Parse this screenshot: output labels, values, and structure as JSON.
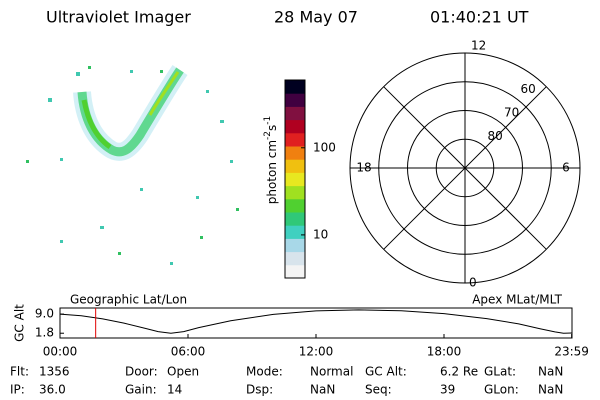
{
  "header": {
    "title": "Ultraviolet Imager",
    "date": "28 May 07",
    "time": "01:40:21 UT"
  },
  "colorbar": {
    "label_parts": [
      "photon cm",
      "-2",
      "s",
      "-1"
    ],
    "scale": "log",
    "lim": [
      3.2,
      600
    ],
    "ticks": [
      10,
      100
    ],
    "colors": [
      "#f4f4f4",
      "#d8e4ec",
      "#a8d8e8",
      "#40d0c0",
      "#30c878",
      "#50d030",
      "#a0e020",
      "#e8e820",
      "#f0c010",
      "#f08010",
      "#e02020",
      "#b00020",
      "#801040",
      "#400040",
      "#000020"
    ]
  },
  "polar": {
    "mlt_labels": [
      "12",
      "18",
      "6",
      "0"
    ],
    "lat_rings": [
      80,
      70,
      60
    ],
    "rlim": [
      90,
      50
    ]
  },
  "alt_plot": {
    "ylabel": "GC Alt",
    "left_title": "Geographic Lat/Lon",
    "right_title": "Apex MLat/MLT",
    "xlim": [
      0,
      24
    ],
    "ylim": [
      0,
      11.3
    ],
    "yticks": [
      {
        "value": 9.0,
        "label": "9.0"
      },
      1.8
    ],
    "xticks": [
      {
        "value": 0,
        "label": "00:00"
      },
      {
        "value": 6,
        "label": "06:00"
      },
      {
        "value": 12,
        "label": "12:00"
      },
      {
        "value": 18,
        "label": "18:00"
      },
      {
        "value": 23.983,
        "label": "23:59"
      }
    ],
    "hours": [
      0,
      1,
      2,
      3,
      4,
      4.6,
      5.2,
      5.8,
      6.5,
      8,
      10,
      12,
      14,
      16,
      18,
      20,
      21.5,
      22.5,
      23.2,
      23.6,
      23.983
    ],
    "values": [
      9.0,
      8.4,
      7.2,
      5.6,
      3.6,
      2.4,
      1.8,
      2.4,
      3.9,
      6.5,
      8.9,
      10.2,
      10.6,
      10.3,
      9.2,
      7.3,
      5.3,
      3.5,
      2.3,
      1.8,
      1.9
    ],
    "marker": 1.672,
    "marker_color": "#e00000"
  },
  "footer": {
    "rows": [
      [
        {
          "label": "Flt:",
          "value": "1356"
        },
        {
          "label": "Door:",
          "value": "Open"
        },
        {
          "label": "Mode:",
          "value": "Normal"
        },
        {
          "label": "GC Alt:",
          "value": "6.2 Re"
        },
        {
          "label": "GLat:",
          "value": "NaN"
        }
      ],
      [
        {
          "label": "IP:",
          "value": "36.0"
        },
        {
          "label": "Gain:",
          "value": "14"
        },
        {
          "label": "Dsp:",
          "value": "NaN"
        },
        {
          "label": "Seq:",
          "value": "39"
        },
        {
          "label": "GLon:",
          "value": "NaN"
        }
      ]
    ]
  }
}
